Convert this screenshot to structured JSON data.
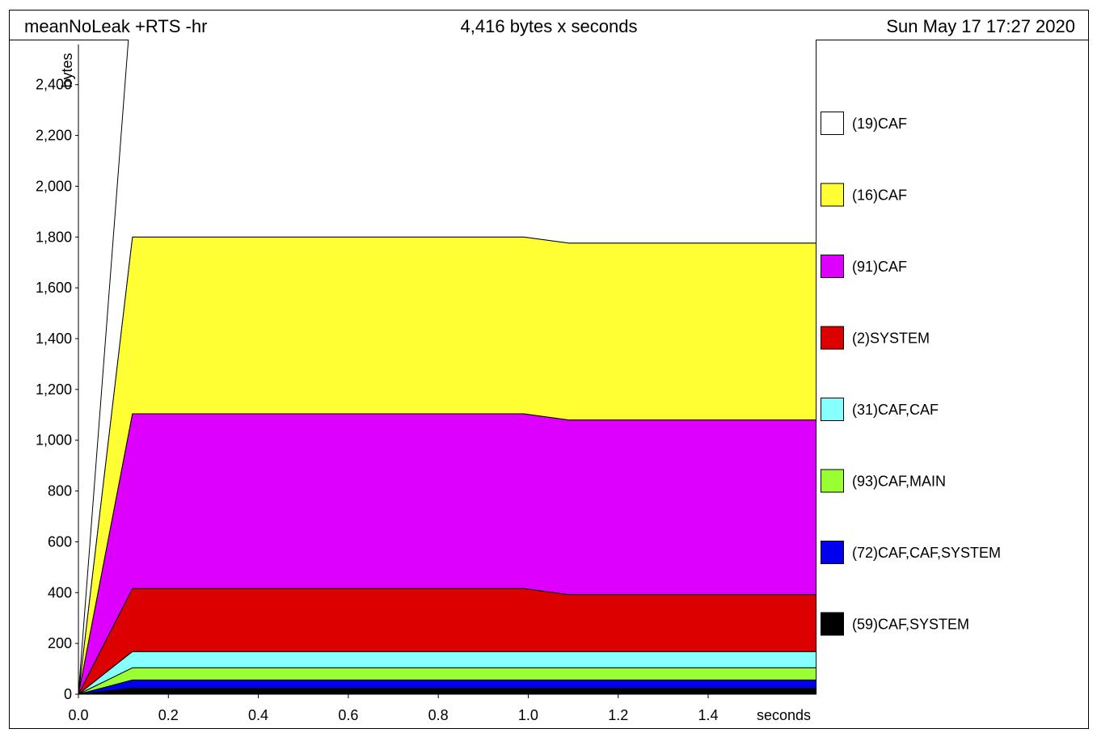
{
  "header": {
    "program": "meanNoLeak +RTS -hr",
    "total": "4,416 bytes x seconds",
    "date": "Sun May 17 17:27 2020"
  },
  "chart_data": {
    "type": "area",
    "stacked": true,
    "xlabel": "seconds",
    "ylabel": "bytes",
    "xlim": [
      0,
      1.63
    ],
    "ylim": [
      0,
      2800
    ],
    "x_ticks": [
      0.0,
      0.2,
      0.4,
      0.6,
      0.8,
      1.0,
      1.2,
      1.4
    ],
    "x_tick_labels": [
      "0.0",
      "0.2",
      "0.4",
      "0.6",
      "0.8",
      "1.0",
      "1.2",
      "1.4"
    ],
    "y_ticks": [
      0,
      200,
      400,
      600,
      800,
      1000,
      1200,
      1400,
      1600,
      1800,
      2000,
      2200,
      2400
    ],
    "y_tick_labels": [
      "0",
      "200",
      "400",
      "600",
      "800",
      "1,000",
      "1,200",
      "1,400",
      "1,600",
      "1,800",
      "2,000",
      "2,200",
      "2,400"
    ],
    "x": [
      0.0,
      0.12,
      0.99,
      1.09,
      1.64
    ],
    "legend_position": "right",
    "series": [
      {
        "name": "(59)CAF,SYSTEM",
        "color": "#000000",
        "values": [
          0,
          24,
          24,
          24,
          24
        ]
      },
      {
        "name": "(72)CAF,CAF,SYSTEM",
        "color": "#0000ee",
        "values": [
          0,
          32,
          32,
          32,
          32
        ]
      },
      {
        "name": "(93)CAF,MAIN",
        "color": "#99ff33",
        "values": [
          0,
          48,
          48,
          48,
          48
        ]
      },
      {
        "name": "(31)CAF,CAF",
        "color": "#88ffff",
        "values": [
          0,
          64,
          64,
          64,
          64
        ]
      },
      {
        "name": "(2)SYSTEM",
        "color": "#dd0000",
        "values": [
          0,
          248,
          248,
          224,
          224
        ]
      },
      {
        "name": "(91)CAF",
        "color": "#dd00ff",
        "values": [
          0,
          688,
          688,
          688,
          688
        ]
      },
      {
        "name": "(16)CAF",
        "color": "#ffff33",
        "values": [
          0,
          696,
          696,
          696,
          696
        ]
      },
      {
        "name": "(19)CAF",
        "color": "#ffffff",
        "values": [
          0,
          984,
          984,
          984,
          984
        ]
      }
    ]
  }
}
